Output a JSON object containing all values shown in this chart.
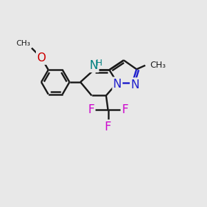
{
  "background_color": "#e8e8e8",
  "bond_color": "#1a1a1a",
  "bond_width": 1.8,
  "atom_colors": {
    "N_blue": "#2020cc",
    "N_teal": "#008080",
    "O": "#cc0000",
    "F": "#cc00cc"
  },
  "font_size_N": 12,
  "font_size_H": 9,
  "font_size_O": 12,
  "font_size_F": 12,
  "font_size_label": 10,
  "xlim": [
    -0.5,
    4.5
  ],
  "ylim": [
    -1.8,
    3.0
  ]
}
